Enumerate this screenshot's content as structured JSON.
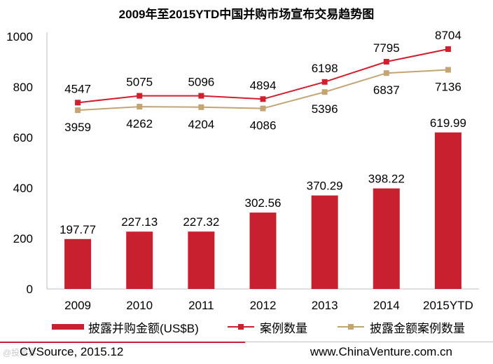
{
  "chart_data": {
    "type": "bar+line",
    "title": "2009年至2015YTD中国并购市场宣布交易趋势图",
    "categories": [
      "2009",
      "2010",
      "2011",
      "2012",
      "2013",
      "2014",
      "2015YTD"
    ],
    "ylim": [
      0,
      1000
    ],
    "yticks": [
      0,
      200,
      400,
      600,
      800,
      1000
    ],
    "series": [
      {
        "name": "披露并购金额(US$B)",
        "kind": "bar",
        "color": "#C8202F",
        "values": [
          197.77,
          227.13,
          227.32,
          302.56,
          370.29,
          398.22,
          619.99
        ],
        "labels": [
          "197.77",
          "227.13",
          "227.32",
          "302.56",
          "370.29",
          "398.22",
          "619.99"
        ]
      },
      {
        "name": "案例数量",
        "kind": "line",
        "color": "#D21F2D",
        "values": [
          4547,
          5075,
          5096,
          4894,
          6198,
          7795,
          8704
        ],
        "plot_values": [
          738,
          765,
          765,
          752,
          820,
          900,
          950
        ],
        "labels": [
          "4547",
          "5075",
          "5096",
          "4894",
          "6198",
          "7795",
          "8704"
        ]
      },
      {
        "name": "披露金额案例数量",
        "kind": "line",
        "color": "#C4A473",
        "values": [
          3959,
          4262,
          4204,
          4086,
          5396,
          6837,
          7136
        ],
        "plot_values": [
          708,
          722,
          720,
          715,
          780,
          855,
          868
        ],
        "labels": [
          "3959",
          "4262",
          "4204",
          "4086",
          "5396",
          "6837",
          "7136"
        ]
      }
    ]
  },
  "source": "CVSource, 2015.12",
  "website": "www.ChinaVenture.com.cn",
  "watermark": "@投资界"
}
